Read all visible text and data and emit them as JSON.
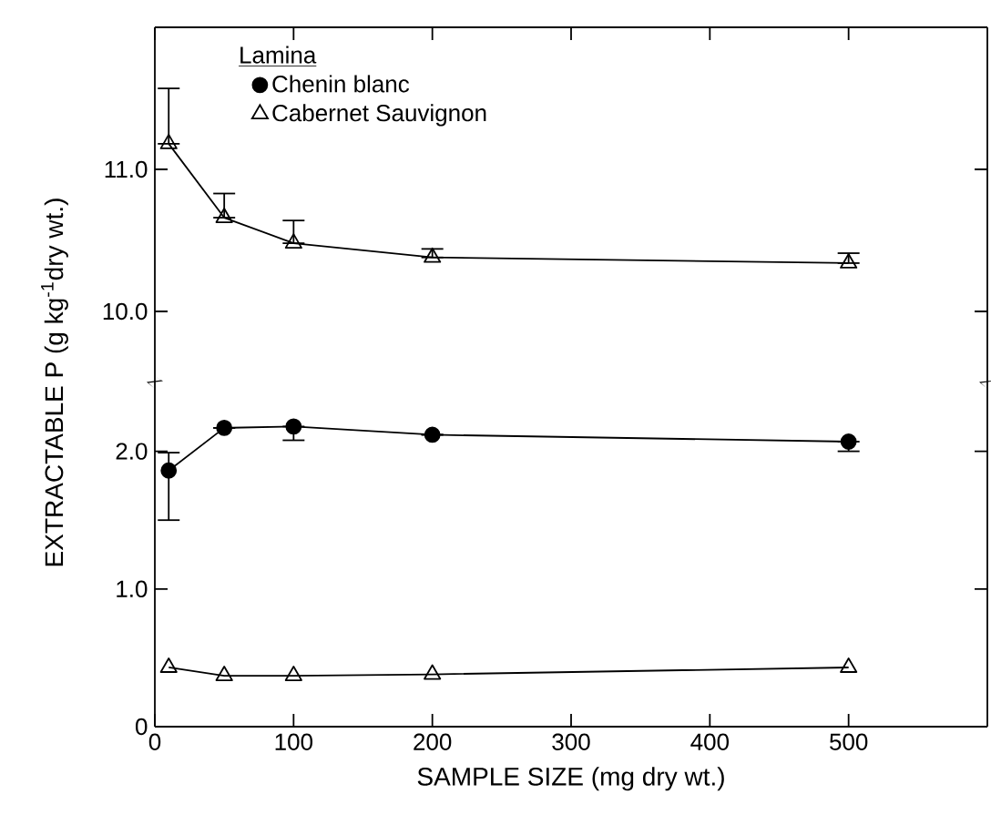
{
  "chart_data": [
    {
      "type": "line",
      "legend_title": "Lamina",
      "legend": "top left",
      "marker": "triangle",
      "line_style": "solid",
      "tick_labels": "y",
      "x": [
        10,
        50,
        100,
        200,
        500
      ],
      "xlim": [
        0,
        600
      ],
      "xticks": [
        0,
        100,
        200,
        300,
        400,
        500
      ],
      "ylim": [
        9.5,
        12.0
      ],
      "yticks": [
        {
          "value": 10,
          "label": "10.0"
        },
        {
          "value": 11,
          "label": "11.0"
        }
      ],
      "series": [
        {
          "name": "Cabernet Sauvignon",
          "color": "#000000",
          "values": [
            11.18,
            10.66,
            10.48,
            10.38,
            10.34
          ],
          "errors": [
            [
              11.18,
              11.57
            ],
            [
              10.66,
              10.83
            ],
            [
              10.48,
              10.64
            ],
            [
              10.38,
              10.44
            ],
            [
              10.34,
              10.41
            ]
          ]
        }
      ]
    },
    {
      "type": "line",
      "xlabel": "SAMPLE SIZE (mg dry wt.)",
      "ylabel": "EXTRACTABLE P (g kg$^{-1}$dry wt.)",
      "marker": "circle",
      "line_style": "solid",
      "x": [
        10,
        50,
        100,
        200,
        500
      ],
      "xlim": [
        0,
        600
      ],
      "xticks": [
        0,
        100,
        200,
        300,
        400,
        500
      ],
      "ylim": [
        0,
        2.5
      ],
      "yticks": [
        0,
        {
          "value": 1,
          "label": "1.0"
        },
        {
          "value": 2,
          "label": "2.0"
        }
      ],
      "series": [
        {
          "name": "Chenin blanc",
          "color": "#000000",
          "values": [
            1.86,
            2.17,
            2.18,
            2.12,
            2.07
          ],
          "errors": [
            [
              1.5,
              1.99
            ],
            null,
            [
              2.08,
              2.18
            ],
            null,
            [
              2.0,
              2.07
            ]
          ]
        },
        {
          "color": "#000000",
          "marker": "triangle",
          "values": [
            0.43,
            0.37,
            0.37,
            0.38,
            0.43
          ]
        }
      ]
    }
  ]
}
